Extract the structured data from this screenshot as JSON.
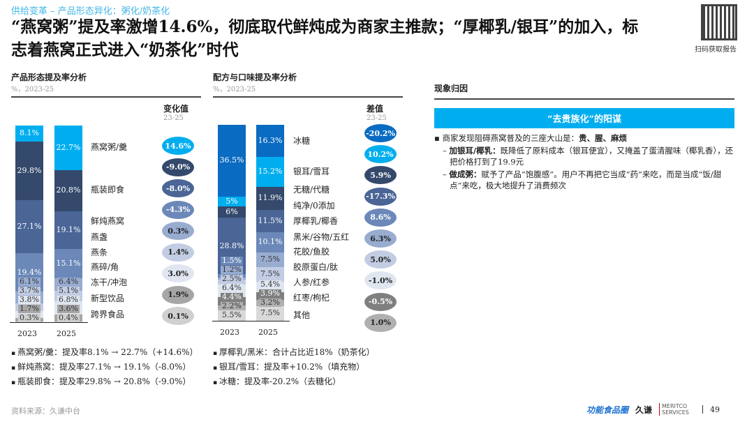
{
  "header": {
    "breadcrumb": "供给变革 – 产品形态异化：粥化/奶茶化",
    "title": "“燕窝粥”提及率激增14.6%，彻底取代鲜炖成为商家主推款；“厚椰乳/银耳”的加入，标志着燕窝正式进入“奶茶化”时代",
    "qr_label": "扫码获取报告"
  },
  "chart_data": [
    {
      "type": "bar",
      "stacked": true,
      "title": "产品形态提及率分析",
      "subtitle": "%，2023-25",
      "diff_header": "变化值",
      "diff_sub": "23-25",
      "categories": [
        "2023",
        "2025"
      ],
      "series": [
        {
          "name": "燕窝粥/羹",
          "values": [
            8.1,
            22.7
          ],
          "diff": "14.6%",
          "color": "#00aeef"
        },
        {
          "name": "瓶装即食",
          "values": [
            29.8,
            20.8
          ],
          "diff": "-9.0%",
          "color": "#34496b"
        },
        {
          "name": "鲜炖燕窝",
          "values": [
            27.1,
            19.1
          ],
          "diff": "-8.0%",
          "color": "#4a6596"
        },
        {
          "name": "燕盏",
          "values": [
            19.4,
            15.1
          ],
          "diff": "-4.3%",
          "color": "#6b88b8"
        },
        {
          "name": "燕条",
          "values": [
            6.1,
            6.4
          ],
          "diff": "0.3%",
          "color": "#98acd0"
        },
        {
          "name": "燕碎/角",
          "values": [
            3.7,
            5.1
          ],
          "diff": "1.4%",
          "color": "#c2cde3"
        },
        {
          "name": "冻干/冲泡",
          "values": [
            3.8,
            6.8
          ],
          "diff": "3.0%",
          "color": "#e0e6f0"
        },
        {
          "name": "新型饮品",
          "values": [
            1.7,
            3.6
          ],
          "diff": "1.9%",
          "color": "#a6a6a6"
        },
        {
          "name": "跨界食品",
          "values": [
            0.3,
            0.4
          ],
          "diff": "0.1%",
          "color": "#d0d0d0"
        }
      ]
    },
    {
      "type": "bar",
      "stacked": true,
      "title": "配方与口味提及率分析",
      "subtitle": "%，2023-25",
      "diff_header": "差值",
      "diff_sub": "23-25",
      "categories": [
        "2023",
        "2025"
      ],
      "series": [
        {
          "name": "冰糖",
          "values": [
            36.5,
            16.3
          ],
          "diff": "-20.2%",
          "color": "#0a6bc2"
        },
        {
          "name": "银耳/雪耳",
          "values": [
            5.0,
            15.2
          ],
          "diff": "10.2%",
          "color": "#00aeef"
        },
        {
          "name": "无糖/代糖",
          "values": [
            6.0,
            11.9
          ],
          "diff": "5.9%",
          "color": "#34496b"
        },
        {
          "name": "纯净/0添加",
          "values": [
            28.8,
            11.5
          ],
          "diff": "-17.3%",
          "color": "#4a6596"
        },
        {
          "name": "厚椰乳/椰香",
          "values": [
            1.5,
            10.1
          ],
          "diff": "8.6%",
          "color": "#6b88b8"
        },
        {
          "name": "黑米/谷物/五红",
          "values": [
            1.2,
            7.5
          ],
          "diff": "6.3%",
          "color": "#98acd0"
        },
        {
          "name": "花胶/鱼胶",
          "values": [
            2.5,
            7.5
          ],
          "diff": "5.0%",
          "color": "#c2cde3"
        },
        {
          "name": "胶原蛋白/肽",
          "values": [
            6.4,
            5.4
          ],
          "diff": "-1.0%",
          "color": "#e0e6f0"
        },
        {
          "name": "人参/红参",
          "values": [
            4.4,
            3.9
          ],
          "diff": "-0.5%",
          "color": "#7f7f7f"
        },
        {
          "name": "红枣/枸杞",
          "values": [
            2.2,
            3.2
          ],
          "diff": "1.0%",
          "color": "#b0b0b0"
        },
        {
          "name": "其他",
          "values": [
            5.5,
            7.5
          ],
          "diff": null,
          "color": "#d9d9d9"
        }
      ]
    }
  ],
  "notes_left": [
    "燕窝粥/羹：提及率8.1% → 22.7%（+14.6%）",
    "鲜炖燕窝：提及率27.1% → 19.1%（-8.0%）",
    "瓶装即食：提及率29.8% → 20.8%（-9.0%）"
  ],
  "notes_right": [
    "厚椰乳/黑米：合计占比近18%（奶茶化）",
    "银耳/雪耳：提及率+10.2%（填充物）",
    "冰糖：提及率-20.2%（去糖化）"
  ],
  "findings": {
    "title": "现象归因",
    "banner": "“去贵族化”的阳谋",
    "point": "商家发现阻碍燕窝普及的三座大山是：",
    "point_bold": "贵、腥、麻烦",
    "sub1_bold": "加银耳/椰乳：",
    "sub1": "既降低了原料成本（银耳便宜），又掩盖了蛋清腥味（椰乳香），还把价格打到了19.9元",
    "sub2_bold": "做成粥：",
    "sub2": "赋予了产品“饱腹感”。用户不再把它当成“药”来吃，而是当成“饭/甜点”来吃，极大地提升了消费频次"
  },
  "footer": {
    "source": "资料来源：久谦中台",
    "logo1": "功能食品圈",
    "logo2": "久谦",
    "logo3": "MERITCO SERVICES",
    "page": "49"
  }
}
